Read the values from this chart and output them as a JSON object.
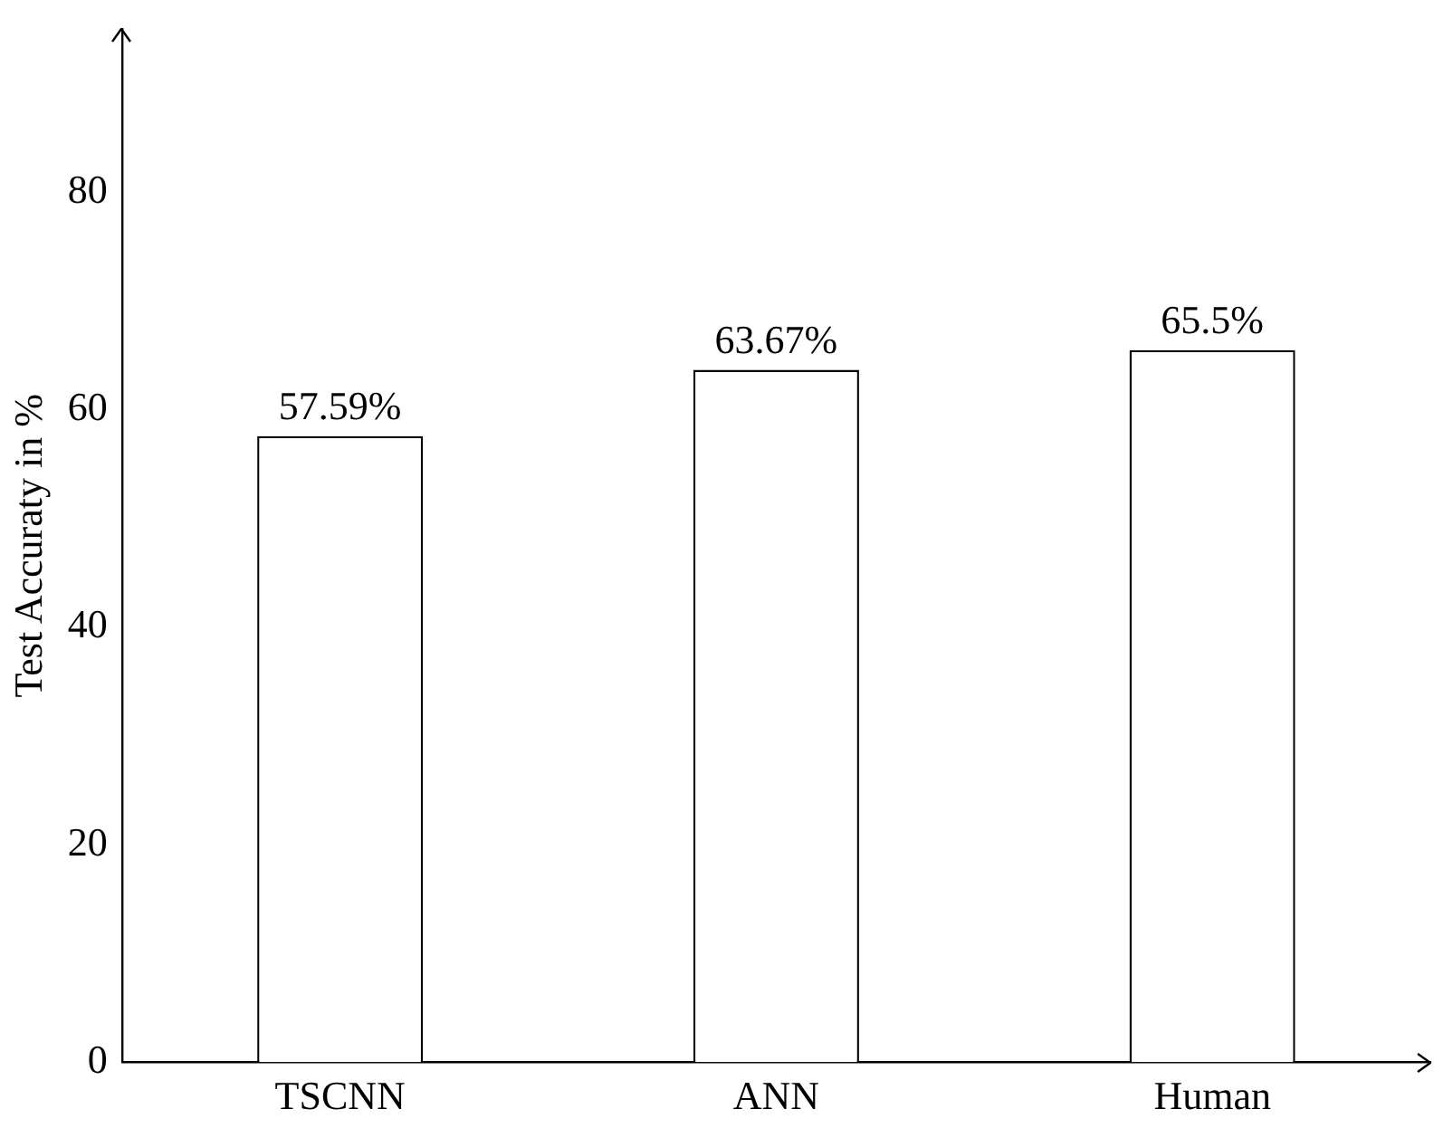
{
  "chart_data": {
    "type": "bar",
    "ylabel": "Test Accuraty in %",
    "categories": [
      "TSCNN",
      "ANN",
      "Human"
    ],
    "values": [
      57.59,
      63.67,
      65.5
    ],
    "color": "#ffffff",
    "value_labels": [
      "57.59%",
      "63.67%",
      "65.5%"
    ],
    "ylim": [
      0,
      95
    ],
    "yticks": [
      0,
      20,
      40,
      60,
      80
    ],
    "grid": false,
    "legend": false
  }
}
